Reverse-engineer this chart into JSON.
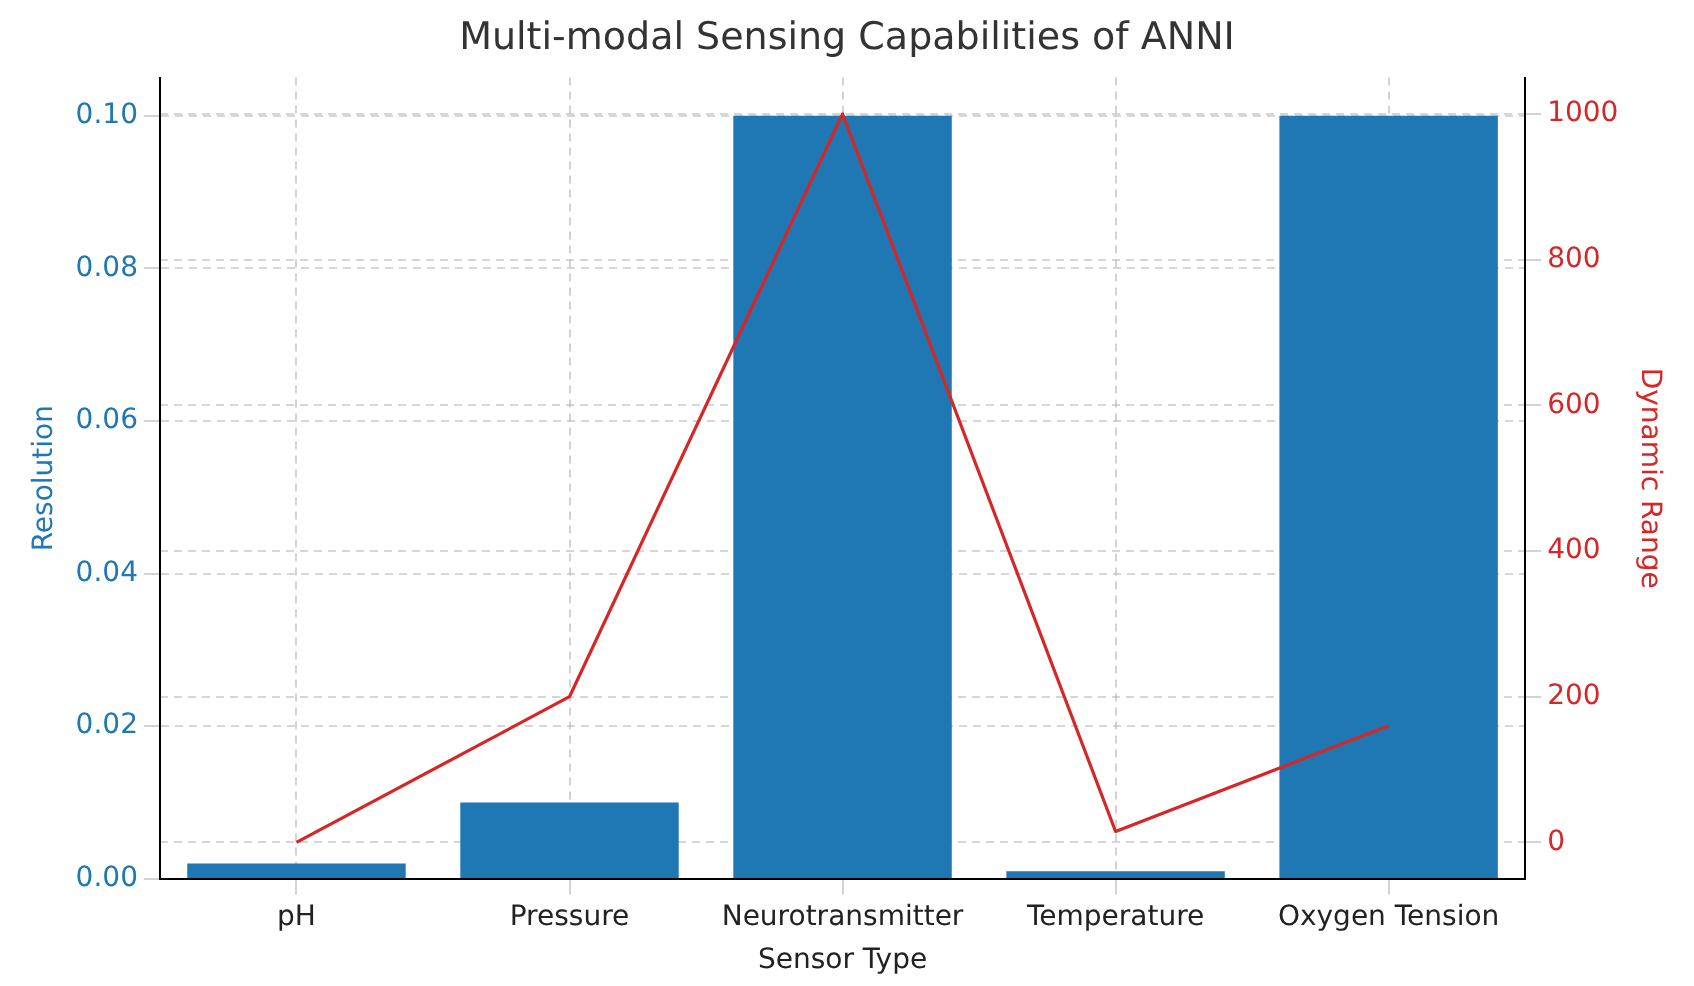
{
  "chart_data": {
    "type": "bar",
    "title": "Multi-modal Sensing Capabilities of ANNI",
    "xlabel": "Sensor Type",
    "ylabel": "Resolution",
    "y2label": "Dynamic Range",
    "categories": [
      "pH",
      "Pressure",
      "Neurotransmitter",
      "Temperature",
      "Oxygen Tension"
    ],
    "series": [
      {
        "color": "#1f77b4",
        "values": [
          0.002,
          0.01,
          0.1,
          0.001,
          0.1
        ]
      },
      {
        "type": "line",
        "axis": "y2",
        "color": "#d62728",
        "values": [
          0,
          200,
          1000,
          15,
          160
        ]
      }
    ],
    "ylim": [
      0,
      0.105
    ],
    "yticks": [
      {
        "value": 0,
        "label": "0.00"
      },
      {
        "value": 0.02,
        "label": "0.02"
      },
      {
        "value": 0.04,
        "label": "0.04"
      },
      {
        "value": 0.06,
        "label": "0.06"
      },
      {
        "value": 0.08,
        "label": "0.08"
      },
      {
        "value": 0.1,
        "label": "0.10"
      }
    ],
    "y2lim": [
      -50,
      1050
    ],
    "y2ticks": [
      0,
      200,
      400,
      600,
      800,
      1000
    ],
    "grid": true,
    "marker": "none",
    "line_style": "solid",
    "legend": false
  }
}
